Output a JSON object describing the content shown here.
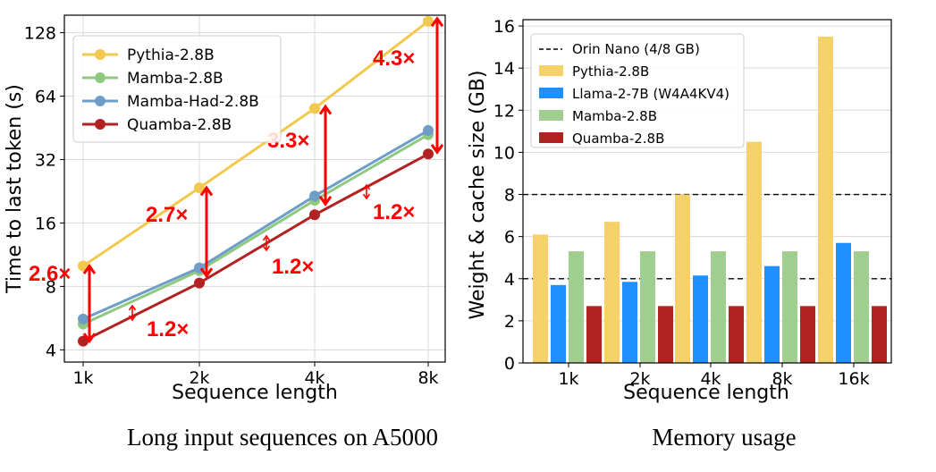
{
  "chart_data": [
    {
      "type": "line",
      "xlabel": "Sequence length",
      "ylabel": "Time to last token (s)",
      "caption": "Long input sequences on A5000",
      "y_scale": "log2",
      "x_ticks": [
        "1k",
        "2k",
        "4k",
        "8k"
      ],
      "y_ticks": [
        "4",
        "8",
        "16",
        "32",
        "64",
        "128"
      ],
      "y_tick_values": [
        4,
        8,
        16,
        32,
        64,
        128
      ],
      "ylim": [
        3.5,
        155
      ],
      "grid": true,
      "legend_position": "top-left",
      "series": [
        {
          "name": "Pythia-2.8B",
          "color": "#f2c94c",
          "values": [
            10,
            23.5,
            56,
            145
          ]
        },
        {
          "name": "Mamba-2.8B",
          "color": "#8fc97e",
          "values": [
            5.3,
            9.5,
            20.5,
            42
          ]
        },
        {
          "name": "Mamba-Had-2.8B",
          "color": "#6e9dc8",
          "values": [
            5.6,
            9.8,
            21.5,
            44
          ]
        },
        {
          "name": "Quamba-2.8B",
          "color": "#b22222",
          "values": [
            4.4,
            8.3,
            17.5,
            34
          ]
        }
      ],
      "annotations": [
        {
          "text": "2.6×"
        },
        {
          "text": "2.7×"
        },
        {
          "text": "3.3×"
        },
        {
          "text": "4.3×"
        },
        {
          "text": "1.2×"
        },
        {
          "text": "1.2×"
        },
        {
          "text": "1.2×"
        }
      ]
    },
    {
      "type": "bar",
      "xlabel": "Sequence length",
      "ylabel": "Weight & cache size (GB)",
      "caption": "Memory usage",
      "categories": [
        "1k",
        "2k",
        "4k",
        "8k",
        "16k"
      ],
      "y_ticks": [
        "0",
        "2",
        "4",
        "6",
        "8",
        "10",
        "12",
        "14",
        "16"
      ],
      "ylim": [
        0,
        16.3
      ],
      "grid": true,
      "legend_position": "top-left",
      "reference_line": {
        "name": "Orin Nano (4/8 GB)",
        "values": [
          4,
          8
        ]
      },
      "series": [
        {
          "name": "Pythia-2.8B",
          "color": "#f5d16a",
          "values": [
            6.1,
            6.7,
            8.0,
            10.5,
            15.5
          ]
        },
        {
          "name": "Llama-2-7B (W4A4KV4)",
          "color": "#1e90ff",
          "values": [
            3.7,
            3.85,
            4.15,
            4.6,
            5.7
          ]
        },
        {
          "name": "Mamba-2.8B",
          "color": "#9fce8e",
          "values": [
            5.3,
            5.3,
            5.3,
            5.3,
            5.3
          ]
        },
        {
          "name": "Quamba-2.8B",
          "color": "#b22222",
          "values": [
            2.7,
            2.7,
            2.7,
            2.7,
            2.7
          ]
        }
      ]
    }
  ]
}
